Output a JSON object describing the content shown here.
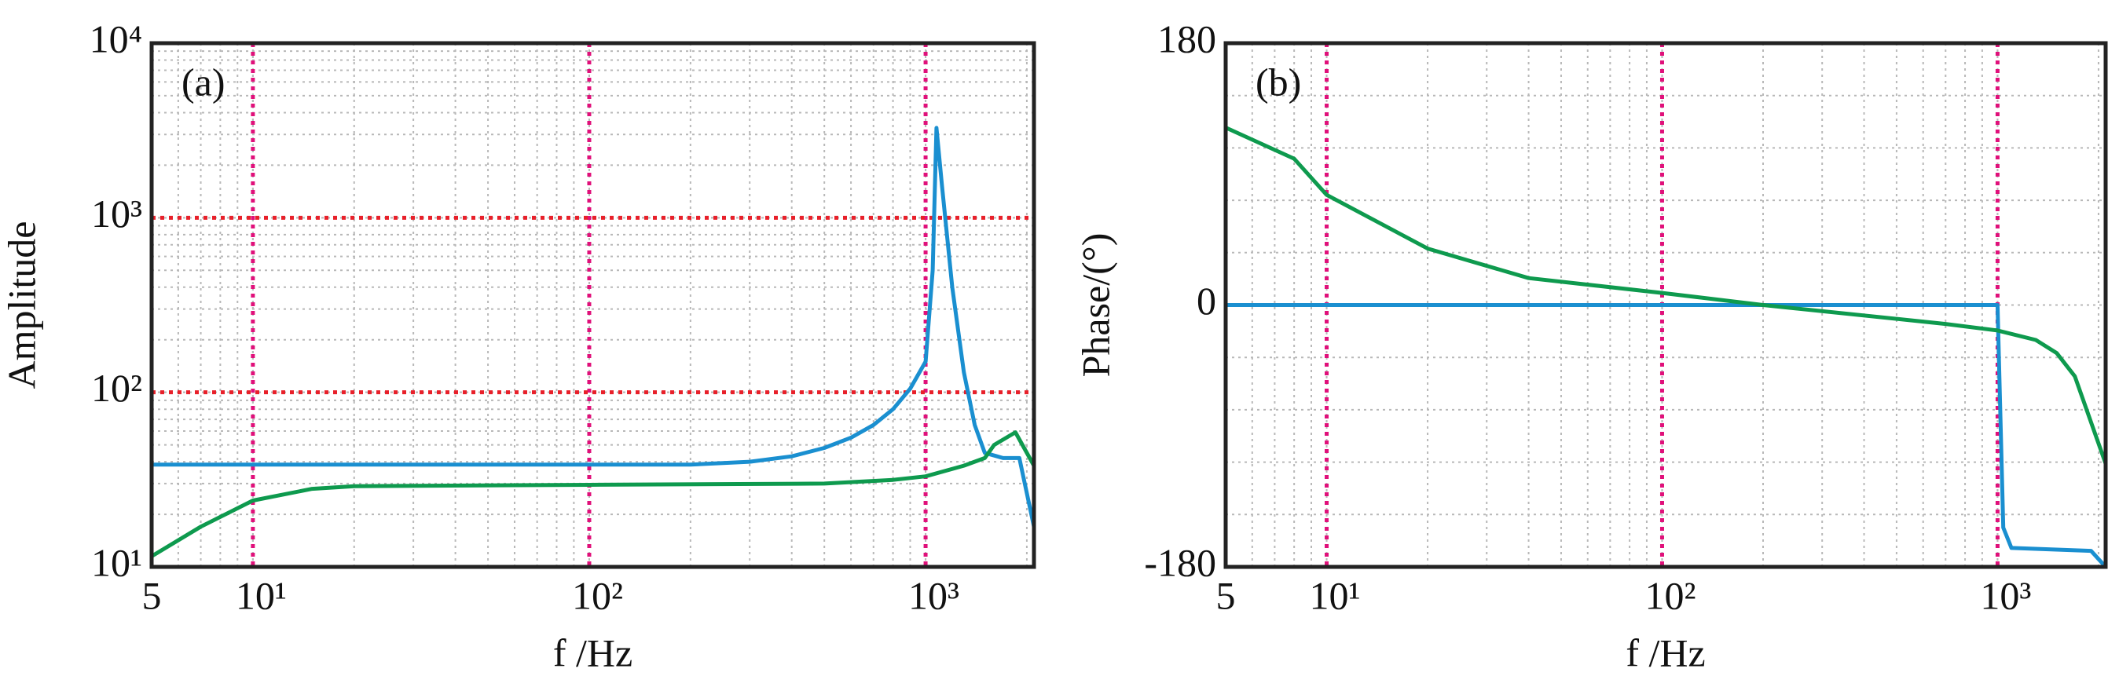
{
  "chart_data": [
    {
      "type": "line",
      "label": "(a)",
      "ylabel": "Amplitude",
      "xlabel": "f /Hz",
      "xscale": "log",
      "yscale": "log",
      "grid": true,
      "xlim": [
        5,
        2100
      ],
      "xticks": [
        5,
        {
          "value": 10,
          "label": "10¹"
        },
        {
          "value": 100,
          "label": "10²"
        },
        {
          "value": 1000,
          "label": "10³"
        }
      ],
      "ylim": [
        10,
        10000
      ],
      "yticks": [
        {
          "value": 10,
          "label": "10¹"
        },
        {
          "value": 100,
          "label": "10²"
        },
        {
          "value": 1000,
          "label": "10³"
        },
        {
          "value": 10000,
          "label": "10⁴"
        }
      ],
      "vlines": [
        10,
        100,
        1000
      ],
      "vline_color": "#e0107a",
      "hlines": [
        100,
        1000
      ],
      "hline_color": "#e8202a",
      "series": [
        {
          "color": "#1a8fd0",
          "x": [
            5,
            10,
            20,
            50,
            100,
            200,
            300,
            400,
            500,
            600,
            700,
            800,
            900,
            1000,
            1050,
            1077,
            1120,
            1200,
            1300,
            1400,
            1500,
            1700,
            1900,
            2100
          ],
          "values": [
            38.5,
            38.5,
            38.5,
            38.5,
            38.5,
            38.5,
            40,
            43,
            48,
            55,
            65,
            80,
            105,
            150,
            500,
            3270,
            1500,
            400,
            130,
            65,
            45,
            42,
            42,
            17
          ]
        },
        {
          "color": "#0e9a4e",
          "x": [
            5,
            7,
            10,
            15,
            20,
            100,
            500,
            800,
            1000,
            1300,
            1500,
            1600,
            1850,
            2100
          ],
          "values": [
            11.5,
            17,
            24,
            28,
            29,
            29.5,
            30,
            31.5,
            33,
            38,
            42,
            50,
            59,
            38
          ]
        }
      ]
    },
    {
      "type": "line",
      "label": "(b)",
      "ylabel": "Phase/(°)",
      "xlabel": "f /Hz",
      "xscale": "log",
      "yscale": "linear",
      "grid": true,
      "xlim": [
        5,
        2100
      ],
      "xticks": [
        5,
        {
          "value": 10,
          "label": "10¹"
        },
        {
          "value": 100,
          "label": "10²"
        },
        {
          "value": 1000,
          "label": "10³"
        }
      ],
      "ylim": [
        -180,
        180
      ],
      "yticks": [
        -180,
        0,
        180
      ],
      "vlines": [
        10,
        100,
        1000
      ],
      "vline_color": "#e0107a",
      "series": [
        {
          "color": "#1a8fd0",
          "x": [
            5,
            1000,
            1040,
            1100,
            1900,
            2100
          ],
          "values": [
            0,
            0,
            -153,
            -167,
            -169,
            -180
          ]
        },
        {
          "color": "#0e9a4e",
          "x": [
            5,
            8,
            10,
            20,
            40,
            100,
            200,
            700,
            1000,
            1300,
            1500,
            1700,
            2100
          ],
          "values": [
            122,
            100.6,
            75.7,
            38.8,
            18.5,
            8.3,
            0,
            -13,
            -17.5,
            -24,
            -33,
            -49,
            -109
          ]
        }
      ]
    }
  ]
}
